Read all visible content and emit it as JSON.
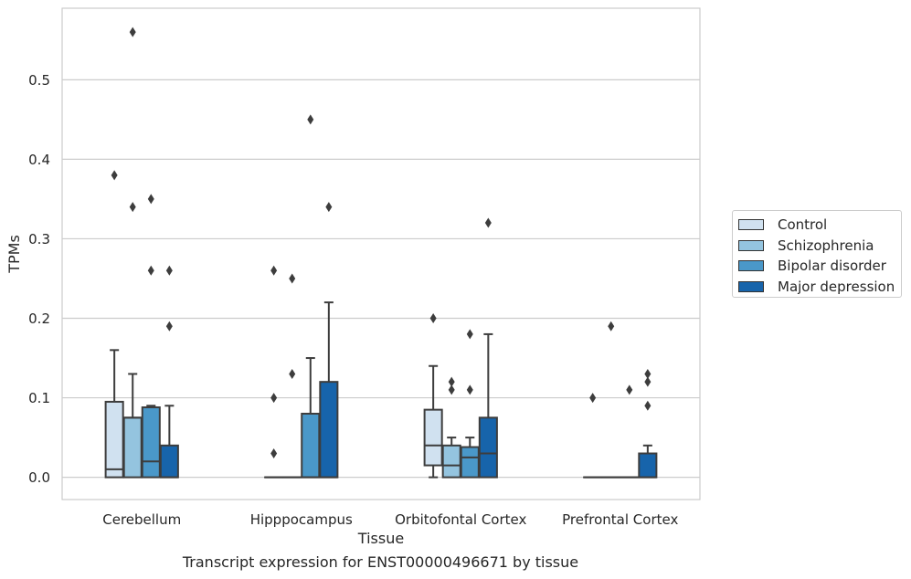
{
  "chart_data": {
    "type": "boxplot",
    "xlabel": "Tissue",
    "ylabel": "TPMs",
    "ylim": [
      -0.028,
      0.59
    ],
    "yticks": [
      0.0,
      0.1,
      0.2,
      0.3,
      0.4,
      0.5
    ],
    "ytick_labels": [
      "0.0",
      "0.1",
      "0.2",
      "0.3",
      "0.4",
      "0.5"
    ],
    "grid": "horizontal",
    "legend_position": "right",
    "categories": [
      "Cerebellum",
      "Hipppocampus",
      "Orbitofontal Cortex",
      "Prefrontal Cortex"
    ],
    "series": [
      {
        "name": "Control",
        "color": "#d0e1f0",
        "boxes": [
          {
            "q1": 0.0,
            "median": 0.01,
            "q3": 0.095,
            "whisker_low": 0.0,
            "whisker_high": 0.16,
            "outliers": [
              0.38
            ]
          },
          {
            "q1": 0.0,
            "median": 0.0,
            "q3": 0.0,
            "whisker_low": 0.0,
            "whisker_high": 0.0,
            "outliers": [
              0.03,
              0.1,
              0.26
            ]
          },
          {
            "q1": 0.015,
            "median": 0.04,
            "q3": 0.085,
            "whisker_low": 0.0,
            "whisker_high": 0.14,
            "outliers": [
              0.2
            ]
          },
          {
            "q1": 0.0,
            "median": 0.0,
            "q3": 0.0,
            "whisker_low": 0.0,
            "whisker_high": 0.0,
            "outliers": [
              0.1
            ]
          }
        ]
      },
      {
        "name": "Schizophrenia",
        "color": "#94c4df",
        "boxes": [
          {
            "q1": 0.0,
            "median": 0.075,
            "q3": 0.075,
            "whisker_low": 0.0,
            "whisker_high": 0.13,
            "outliers": [
              0.34,
              0.56
            ]
          },
          {
            "q1": 0.0,
            "median": 0.0,
            "q3": 0.0,
            "whisker_low": 0.0,
            "whisker_high": 0.0,
            "outliers": [
              0.13,
              0.25
            ]
          },
          {
            "q1": 0.0,
            "median": 0.015,
            "q3": 0.04,
            "whisker_low": 0.0,
            "whisker_high": 0.05,
            "outliers": [
              0.11,
              0.12
            ]
          },
          {
            "q1": 0.0,
            "median": 0.0,
            "q3": 0.0,
            "whisker_low": 0.0,
            "whisker_high": 0.0,
            "outliers": [
              0.19
            ]
          }
        ]
      },
      {
        "name": "Bipolar disorder",
        "color": "#4a98c9",
        "boxes": [
          {
            "q1": 0.0,
            "median": 0.02,
            "q3": 0.088,
            "whisker_low": 0.0,
            "whisker_high": 0.09,
            "outliers": [
              0.26,
              0.35
            ]
          },
          {
            "q1": 0.0,
            "median": 0.0,
            "q3": 0.08,
            "whisker_low": 0.0,
            "whisker_high": 0.15,
            "outliers": [
              0.45
            ]
          },
          {
            "q1": 0.0,
            "median": 0.025,
            "q3": 0.038,
            "whisker_low": 0.0,
            "whisker_high": 0.05,
            "outliers": [
              0.11,
              0.18
            ]
          },
          {
            "q1": 0.0,
            "median": 0.0,
            "q3": 0.0,
            "whisker_low": 0.0,
            "whisker_high": 0.0,
            "outliers": [
              0.11
            ]
          }
        ]
      },
      {
        "name": "Major depression",
        "color": "#1764ab",
        "boxes": [
          {
            "q1": 0.0,
            "median": 0.0,
            "q3": 0.04,
            "whisker_low": 0.0,
            "whisker_high": 0.09,
            "outliers": [
              0.19,
              0.26
            ]
          },
          {
            "q1": 0.0,
            "median": 0.0,
            "q3": 0.12,
            "whisker_low": 0.0,
            "whisker_high": 0.22,
            "outliers": [
              0.34
            ]
          },
          {
            "q1": 0.0,
            "median": 0.03,
            "q3": 0.075,
            "whisker_low": 0.0,
            "whisker_high": 0.18,
            "outliers": [
              0.32
            ]
          },
          {
            "q1": 0.0,
            "median": 0.0,
            "q3": 0.03,
            "whisker_low": 0.0,
            "whisker_high": 0.04,
            "outliers": [
              0.09,
              0.12,
              0.13
            ]
          }
        ]
      }
    ]
  },
  "caption": "Transcript expression for ENST00000496671 by tissue"
}
